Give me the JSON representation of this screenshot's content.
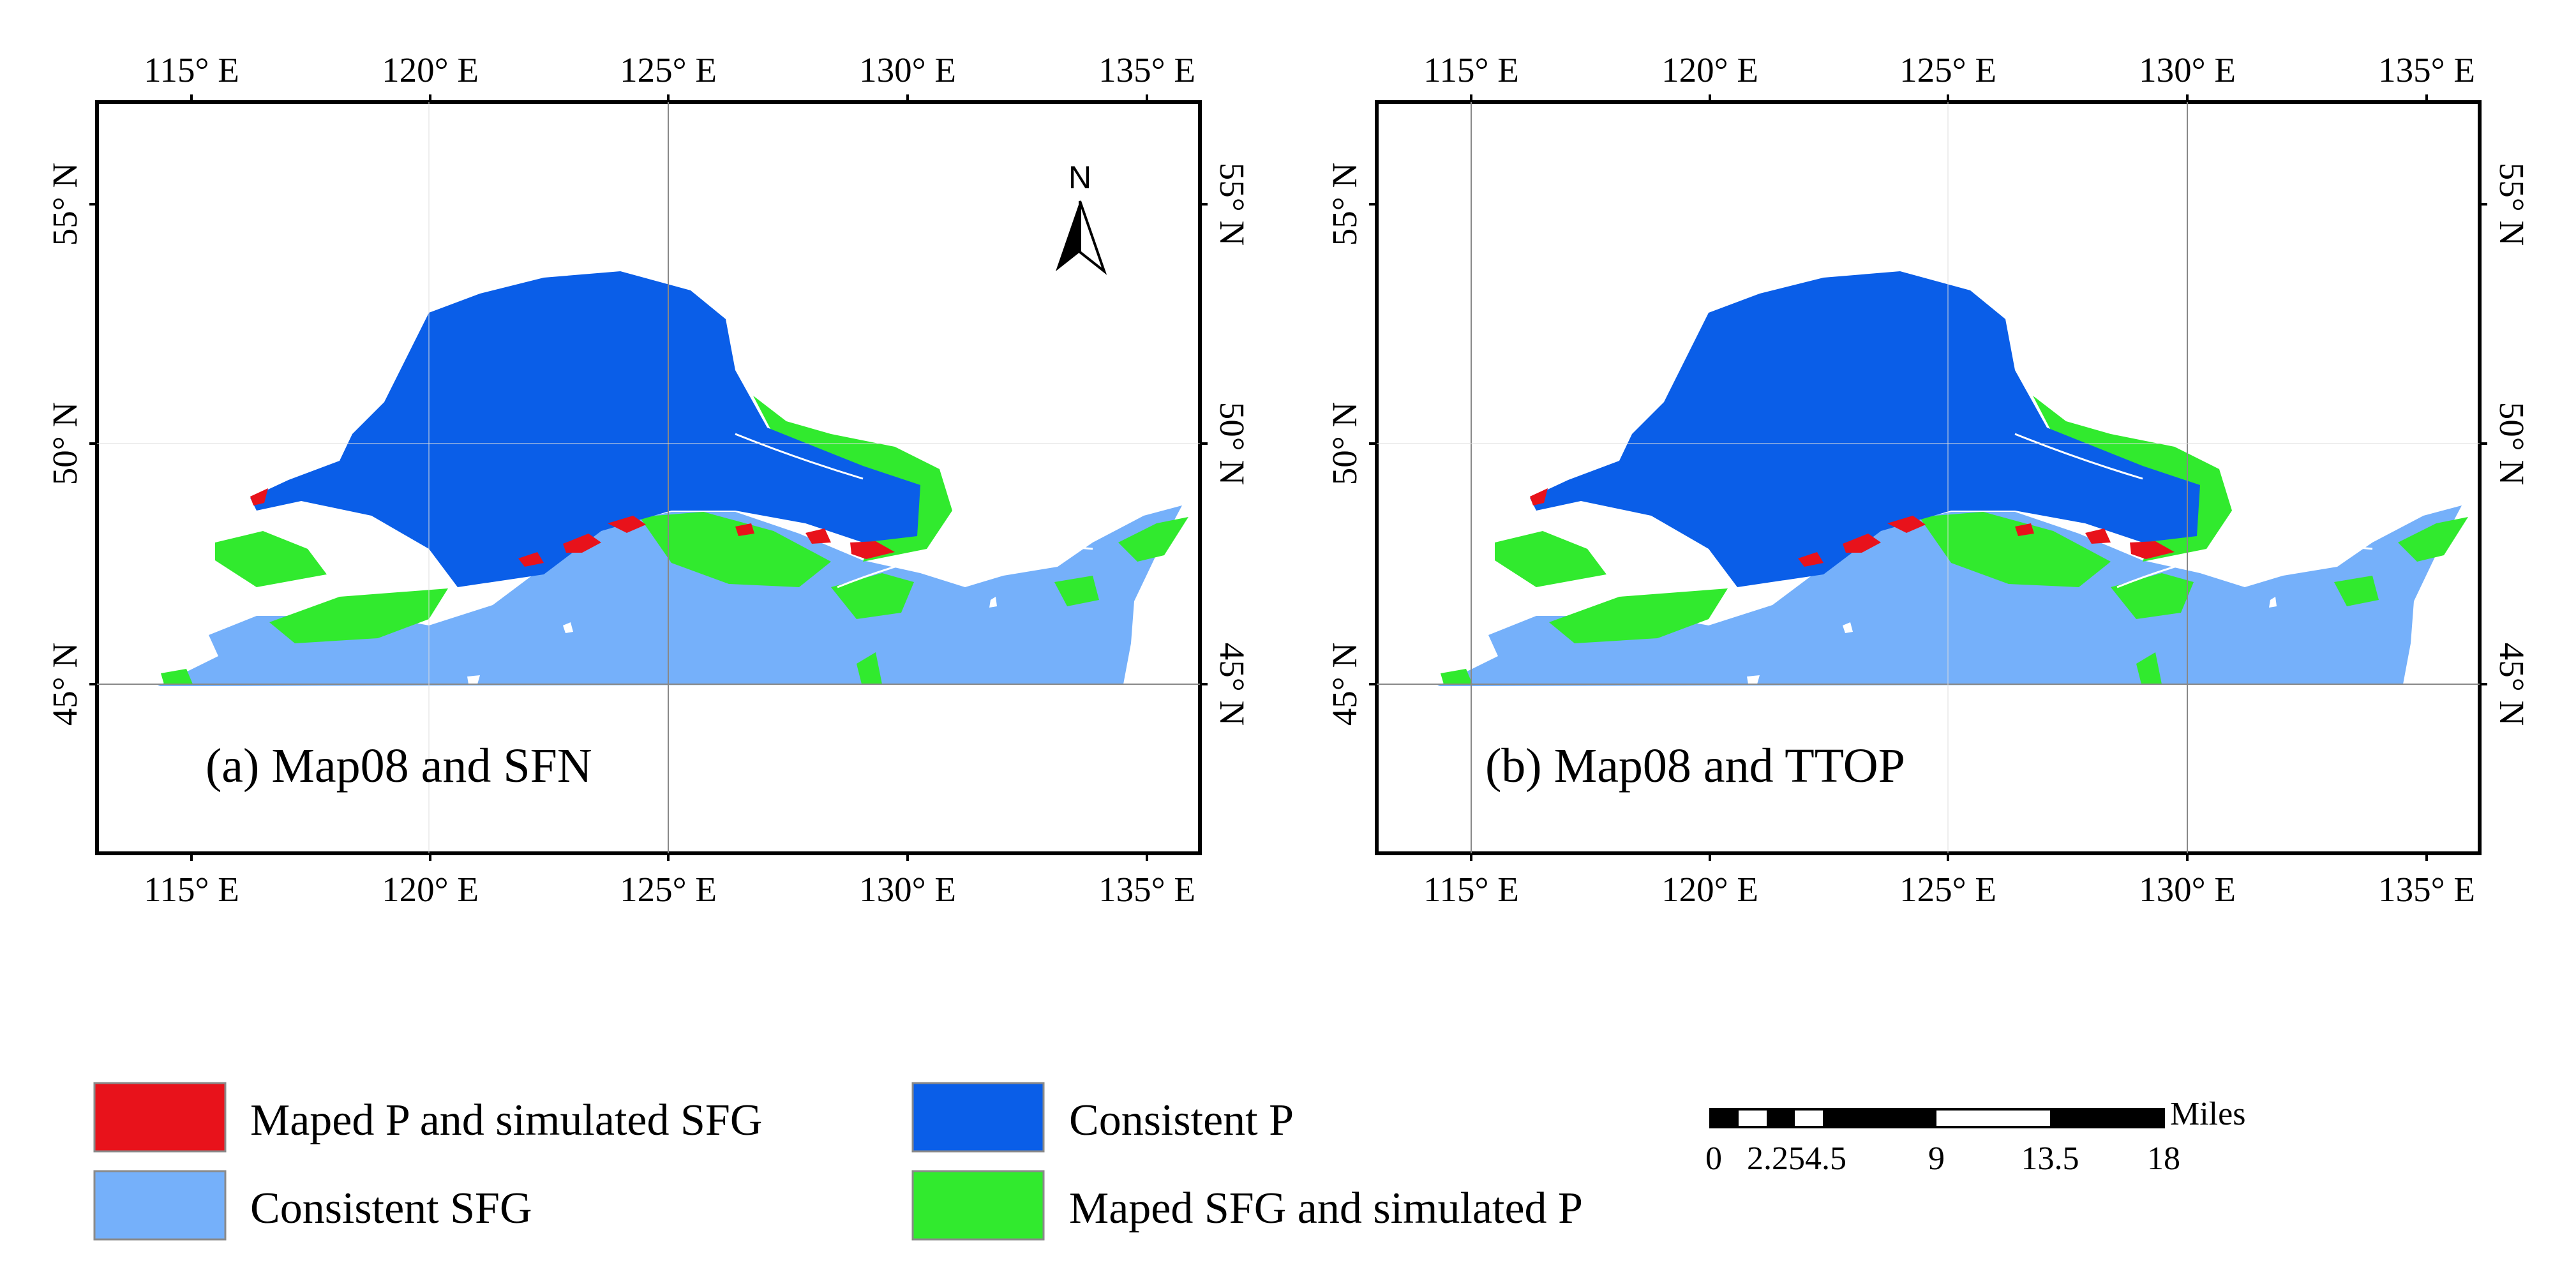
{
  "panels": [
    {
      "title": "(a) Map08 and SFN",
      "lon_ticks": [
        "115° E",
        "120° E",
        "125° E",
        "130° E",
        "135° E"
      ],
      "lat_ticks": [
        "55° N",
        "50° N",
        "45° N"
      ],
      "north_arrow": {
        "label": "N",
        "icon": "north-arrow-icon"
      }
    },
    {
      "title": "(b) Map08 and TTOP",
      "lon_ticks": [
        "115° E",
        "120° E",
        "125° E",
        "130° E",
        "135° E"
      ],
      "lat_ticks": [
        "55° N",
        "50° N",
        "45° N"
      ]
    }
  ],
  "legend": [
    {
      "label": "Maped P and simulated SFG",
      "color": "#e8121b"
    },
    {
      "label": "Consistent SFG",
      "color": "#75b0fa"
    },
    {
      "label": "Consistent P",
      "color": "#0a5ee8"
    },
    {
      "label": "Maped SFG and simulated P",
      "color": "#31ea2e"
    }
  ],
  "scale_bar": {
    "labels": [
      "0",
      "2.254.5",
      "9",
      "13.5",
      "18"
    ],
    "unit": "Miles"
  },
  "colors": {
    "consistent_p": "#0a5ee8",
    "consistent_sfg": "#75b0fa",
    "maped_sfg_sim_p": "#31ea2e",
    "maped_p_sim_sfg": "#e8121b"
  }
}
